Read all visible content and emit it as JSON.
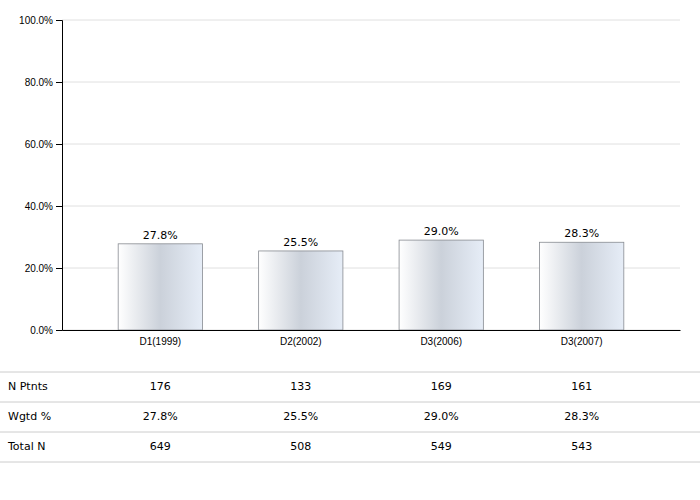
{
  "chart_data": {
    "type": "bar",
    "categories": [
      "D1(1999)",
      "D2(2002)",
      "D3(2006)",
      "D3(2007)"
    ],
    "values": [
      27.8,
      25.5,
      29.0,
      28.3
    ],
    "value_labels": [
      "27.8%",
      "25.5%",
      "29.0%",
      "28.3%"
    ],
    "data_labels": true,
    "color": "#e6edf7",
    "ylim": [
      0,
      100
    ],
    "yticks": [
      {
        "value": 0,
        "label": "0.0%"
      },
      {
        "value": 20,
        "label": "20.0%"
      },
      {
        "value": 40,
        "label": "40.0%"
      },
      {
        "value": 60,
        "label": "60.0%"
      },
      {
        "value": 80,
        "label": "80.0%"
      },
      {
        "value": 100,
        "label": "100.0%"
      }
    ],
    "grid": true,
    "table": [
      {
        "name": "N Ptnts",
        "values": [
          176,
          133,
          169,
          161
        ]
      },
      {
        "name": "Wgtd %",
        "values": [
          27.8,
          25.5,
          29.0,
          28.3
        ],
        "value_labels": [
          "27.8%",
          "25.5%",
          "29.0%",
          "28.3%"
        ]
      },
      {
        "name": "Total N",
        "values": [
          649,
          508,
          549,
          543
        ]
      }
    ]
  }
}
